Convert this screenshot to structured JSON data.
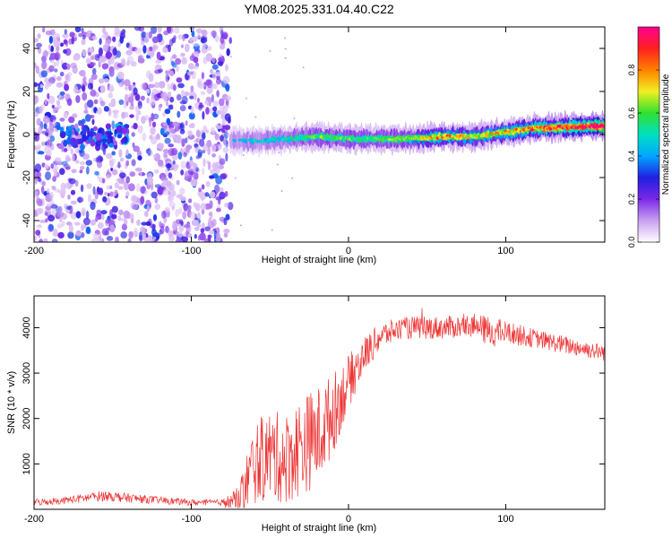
{
  "title": "YM08.2025.331.04.40.C22",
  "colors": {
    "line": "#ee3333",
    "colormap": [
      "#ffffff",
      "#c9a0f0",
      "#7a28e8",
      "#2020e0",
      "#00a8ff",
      "#00e0c0",
      "#30e030",
      "#f0f020",
      "#ff8000",
      "#ff2020",
      "#ff0090"
    ]
  },
  "chart_data": [
    {
      "type": "heatmap",
      "name": "spectrogram",
      "xlabel": "Height of straight line (km)",
      "ylabel": "Frequency (Hz)",
      "xlim": [
        -200,
        163
      ],
      "ylim": [
        -50,
        50
      ],
      "xticks": [
        -200,
        -100,
        0,
        100
      ],
      "yticks": [
        -40,
        -20,
        0,
        20,
        40
      ],
      "xtick_labels": [
        "-200",
        "-100",
        "0",
        "100"
      ],
      "ytick_labels": [
        "-40",
        "-20",
        "0",
        "20",
        "40"
      ],
      "colorbar": {
        "label": "Normalized spectral amplitude",
        "range": [
          0,
          1
        ],
        "ticks": [
          "0.0",
          "0.2",
          "0.4",
          "0.6",
          "0.8"
        ]
      },
      "noise_region_x": [
        -200,
        -75
      ],
      "ridge": {
        "x": [
          -75,
          -60,
          -40,
          -20,
          0,
          20,
          40,
          60,
          80,
          100,
          120,
          163
        ],
        "freq": [
          -3,
          -3,
          -2,
          -1,
          -2,
          -2,
          -2,
          -1,
          -1,
          1,
          3,
          4
        ],
        "amp": [
          0.35,
          0.4,
          0.45,
          0.55,
          0.55,
          0.55,
          0.6,
          0.75,
          0.65,
          0.7,
          0.8,
          0.95
        ]
      },
      "cluster": {
        "x": [
          -185,
          -140
        ],
        "freq": [
          -6,
          4
        ],
        "amp": 0.4
      }
    },
    {
      "type": "line",
      "name": "snr",
      "xlabel": "Height of straight line (km)",
      "ylabel": "SNR (10 * v/v)",
      "xlim": [
        -200,
        163
      ],
      "ylim": [
        0,
        4700
      ],
      "xticks": [
        -200,
        -100,
        0,
        100
      ],
      "yticks": [
        1000,
        2000,
        3000,
        4000
      ],
      "xtick_labels": [
        "-200",
        "-100",
        "0",
        "100"
      ],
      "ytick_labels": [
        "1000",
        "2000",
        "3000",
        "4000"
      ],
      "series": [
        {
          "name": "SNR",
          "envelope_x": [
            -200,
            -180,
            -155,
            -140,
            -120,
            -100,
            -80,
            -70,
            -60,
            -50,
            -40,
            -30,
            -20,
            -10,
            0,
            10,
            20,
            30,
            40,
            60,
            80,
            90,
            100,
            120,
            140,
            163
          ],
          "envelope_y": [
            150,
            200,
            300,
            250,
            200,
            150,
            150,
            200,
            1000,
            1200,
            1100,
            1400,
            1600,
            2100,
            2800,
            3400,
            3800,
            3950,
            4000,
            4000,
            4050,
            3900,
            3900,
            3750,
            3600,
            3450
          ],
          "noise_y": [
            80,
            80,
            120,
            100,
            80,
            70,
            70,
            300,
            900,
            1000,
            1000,
            1100,
            1100,
            900,
            600,
            400,
            300,
            250,
            250,
            250,
            250,
            350,
            250,
            200,
            200,
            180
          ]
        }
      ]
    }
  ]
}
